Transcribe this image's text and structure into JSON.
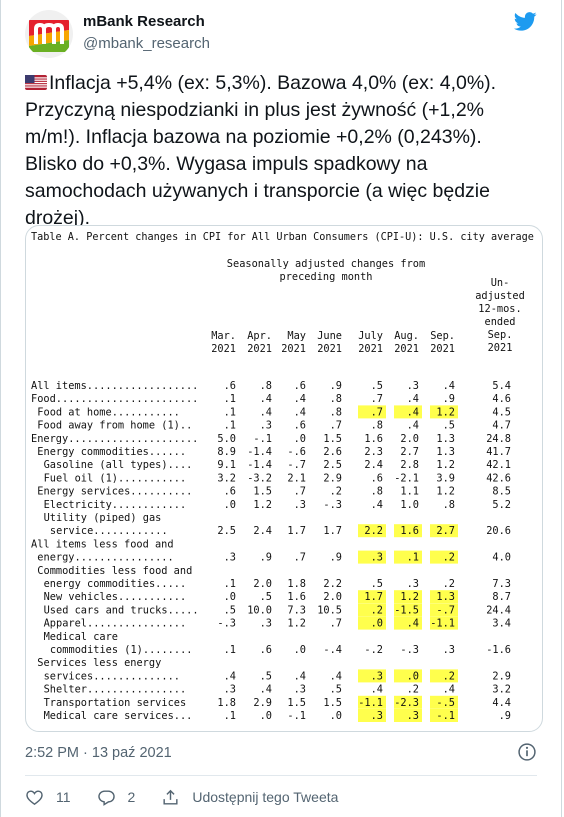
{
  "author": {
    "name": "mBank Research",
    "handle": "@mbank_research"
  },
  "tweet": {
    "lines": [
      "Inflacja +5,4% (ex: 5,3%). Bazowa 4,0% (ex: 4,0%).",
      "Przyczyną niespodzianki in plus jest żywność (+1,2%",
      "m/m!). Inflacja bazowa na poziomie +0,2% (0,243%).",
      "Blisko do +0,3%. Wygasa impuls spadkowy na",
      "samochodach używanych i transporcie (a więc będzie",
      "drożej)."
    ]
  },
  "table": {
    "title": "Table A. Percent changes in CPI for All Urban Consumers (CPI-U): U.S. city average",
    "header_group": [
      "Seasonally adjusted changes from",
      "preceding month"
    ],
    "unadjusted_header": [
      "Un-",
      "adjusted",
      "12-mos.",
      "ended",
      "Sep.",
      "2021"
    ],
    "months": [
      {
        "m": "Mar.",
        "y": "2021"
      },
      {
        "m": "Apr.",
        "y": "2021"
      },
      {
        "m": "May",
        "y": "2021"
      },
      {
        "m": "June",
        "y": "2021"
      },
      {
        "m": "July",
        "y": "2021"
      },
      {
        "m": "Aug.",
        "y": "2021"
      },
      {
        "m": "Sep.",
        "y": "2021"
      }
    ],
    "rows": [
      {
        "label": "All items..................",
        "indent": 0,
        "v": [
          ".6",
          ".8",
          ".6",
          ".9",
          ".5",
          ".3",
          ".4",
          "5.4"
        ],
        "hl": []
      },
      {
        "label": "Food.......................",
        "indent": 0,
        "v": [
          ".1",
          ".4",
          ".4",
          ".8",
          ".7",
          ".4",
          ".9",
          "4.6"
        ],
        "hl": []
      },
      {
        "label": "Food at home...........",
        "indent": 1,
        "v": [
          ".1",
          ".4",
          ".4",
          ".8",
          ".7",
          ".4",
          "1.2",
          "4.5"
        ],
        "hl": [
          4,
          5,
          6
        ]
      },
      {
        "label": "Food away from home (1)..",
        "indent": 1,
        "v": [
          ".1",
          ".3",
          ".6",
          ".7",
          ".8",
          ".4",
          ".5",
          "4.7"
        ],
        "hl": []
      },
      {
        "label": "Energy.....................",
        "indent": 0,
        "v": [
          "5.0",
          "-.1",
          ".0",
          "1.5",
          "1.6",
          "2.0",
          "1.3",
          "24.8"
        ],
        "hl": []
      },
      {
        "label": "Energy commodities......",
        "indent": 1,
        "v": [
          "8.9",
          "-1.4",
          "-.6",
          "2.6",
          "2.3",
          "2.7",
          "1.3",
          "41.7"
        ],
        "hl": []
      },
      {
        "label": "Gasoline (all types)....",
        "indent": 2,
        "v": [
          "9.1",
          "-1.4",
          "-.7",
          "2.5",
          "2.4",
          "2.8",
          "1.2",
          "42.1"
        ],
        "hl": []
      },
      {
        "label": "Fuel oil (1)...........",
        "indent": 2,
        "v": [
          "3.2",
          "-3.2",
          "2.1",
          "2.9",
          ".6",
          "-2.1",
          "3.9",
          "42.6"
        ],
        "hl": []
      },
      {
        "label": "Energy services..........",
        "indent": 1,
        "v": [
          ".6",
          "1.5",
          ".7",
          ".2",
          ".8",
          "1.1",
          "1.2",
          "8.5"
        ],
        "hl": []
      },
      {
        "label": "Electricity............",
        "indent": 2,
        "v": [
          ".0",
          "1.2",
          ".3",
          "-.3",
          ".4",
          "1.0",
          ".8",
          "5.2"
        ],
        "hl": []
      },
      {
        "label": "Utility (piped) gas",
        "indent": 2,
        "v": [
          "",
          "",
          "",
          "",
          "",
          "",
          "",
          ""
        ],
        "hl": []
      },
      {
        "label": "service............",
        "indent": 3,
        "v": [
          "2.5",
          "2.4",
          "1.7",
          "1.7",
          "2.2",
          "1.6",
          "2.7",
          "20.6"
        ],
        "hl": [
          4,
          5,
          6
        ]
      },
      {
        "label": "All items less food and",
        "indent": 0,
        "v": [
          "",
          "",
          "",
          "",
          "",
          "",
          "",
          ""
        ],
        "hl": []
      },
      {
        "label": "energy................",
        "indent": 1,
        "v": [
          ".3",
          ".9",
          ".7",
          ".9",
          ".3",
          ".1",
          ".2",
          "4.0"
        ],
        "hl": [
          4,
          5,
          6
        ]
      },
      {
        "label": "Commodities less food and",
        "indent": 1,
        "v": [
          "",
          "",
          "",
          "",
          "",
          "",
          "",
          ""
        ],
        "hl": []
      },
      {
        "label": "energy commodities.....",
        "indent": 2,
        "v": [
          ".1",
          "2.0",
          "1.8",
          "2.2",
          ".5",
          ".3",
          ".2",
          "7.3"
        ],
        "hl": []
      },
      {
        "label": "New vehicles...........",
        "indent": 2,
        "v": [
          ".0",
          ".5",
          "1.6",
          "2.0",
          "1.7",
          "1.2",
          "1.3",
          "8.7"
        ],
        "hl": [
          4,
          5,
          6
        ]
      },
      {
        "label": "Used cars and trucks.....",
        "indent": 2,
        "v": [
          ".5",
          "10.0",
          "7.3",
          "10.5",
          ".2",
          "-1.5",
          "-.7",
          "24.4"
        ],
        "hl": [
          4,
          5,
          6
        ]
      },
      {
        "label": "Apparel................",
        "indent": 2,
        "v": [
          "-.3",
          ".3",
          "1.2",
          ".7",
          ".0",
          ".4",
          "-1.1",
          "3.4"
        ],
        "hl": [
          4,
          5,
          6
        ]
      },
      {
        "label": "Medical care",
        "indent": 2,
        "v": [
          "",
          "",
          "",
          "",
          "",
          "",
          "",
          ""
        ],
        "hl": []
      },
      {
        "label": "commodities (1)........",
        "indent": 3,
        "v": [
          ".1",
          ".6",
          ".0",
          "-.4",
          "-.2",
          "-.3",
          ".3",
          "-1.6"
        ],
        "hl": []
      },
      {
        "label": "Services less energy",
        "indent": 1,
        "v": [
          "",
          "",
          "",
          "",
          "",
          "",
          "",
          ""
        ],
        "hl": []
      },
      {
        "label": "services..............",
        "indent": 2,
        "v": [
          ".4",
          ".5",
          ".4",
          ".4",
          ".3",
          ".0",
          ".2",
          "2.9"
        ],
        "hl": [
          4,
          5,
          6
        ]
      },
      {
        "label": "Shelter................",
        "indent": 2,
        "v": [
          ".3",
          ".4",
          ".3",
          ".5",
          ".4",
          ".2",
          ".4",
          "3.2"
        ],
        "hl": []
      },
      {
        "label": "Transportation services",
        "indent": 2,
        "v": [
          "1.8",
          "2.9",
          "1.5",
          "1.5",
          "-1.1",
          "-2.3",
          "-.5",
          "4.4"
        ],
        "hl": [
          4,
          5,
          6
        ]
      },
      {
        "label": "Medical care services...",
        "indent": 2,
        "v": [
          ".1",
          ".0",
          "-.1",
          ".0",
          ".3",
          ".3",
          "-.1",
          ".9"
        ],
        "hl": [
          4,
          5,
          6
        ]
      }
    ]
  },
  "meta": {
    "time": "2:52 PM",
    "separator": " · ",
    "date": "13 paź 2021"
  },
  "actions": {
    "likes": "11",
    "replies": "2",
    "share_label": "Udostępnij tego Tweeta"
  },
  "colors": {
    "twitter_blue": "#1d9bf0",
    "highlight": "#ffff4d",
    "secondary_text": "#536471",
    "mbank_red": "#e4202d"
  }
}
